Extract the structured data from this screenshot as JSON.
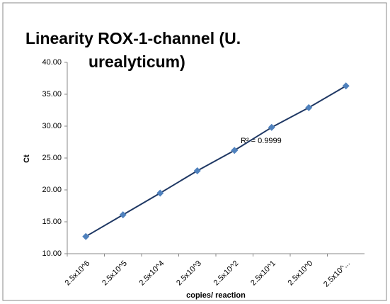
{
  "chart_data": {
    "type": "line",
    "title": [
      "Linearity ROX-1-channel (U.",
      "urealyticum)"
    ],
    "x_label": "copies/ reaction",
    "y_label": "Ct",
    "annotation": "R² = 0.9999",
    "categories": [
      "2.5x10^6",
      "2.5x10^5",
      "2.5x10^4",
      "2.5x10^3",
      "2.5x10^2",
      "2.5x10^1",
      "2.5x10^0",
      "2.5x10^..."
    ],
    "series": [
      {
        "name": "Ct",
        "color": "#4f81bd",
        "line_color": "#1f3864",
        "values": [
          12.7,
          16.1,
          19.5,
          23.0,
          26.2,
          29.8,
          32.9,
          36.3
        ]
      }
    ],
    "ylim": [
      10,
      40
    ],
    "yticks": [
      {
        "value": 10,
        "label": "10.00"
      },
      {
        "value": 15,
        "label": "15.00"
      },
      {
        "value": 20,
        "label": "20.00"
      },
      {
        "value": 25,
        "label": "25.00"
      },
      {
        "value": 30,
        "label": "30.00"
      },
      {
        "value": 35,
        "label": "35.00"
      },
      {
        "value": 40,
        "label": "40.00"
      }
    ],
    "grid": false
  }
}
